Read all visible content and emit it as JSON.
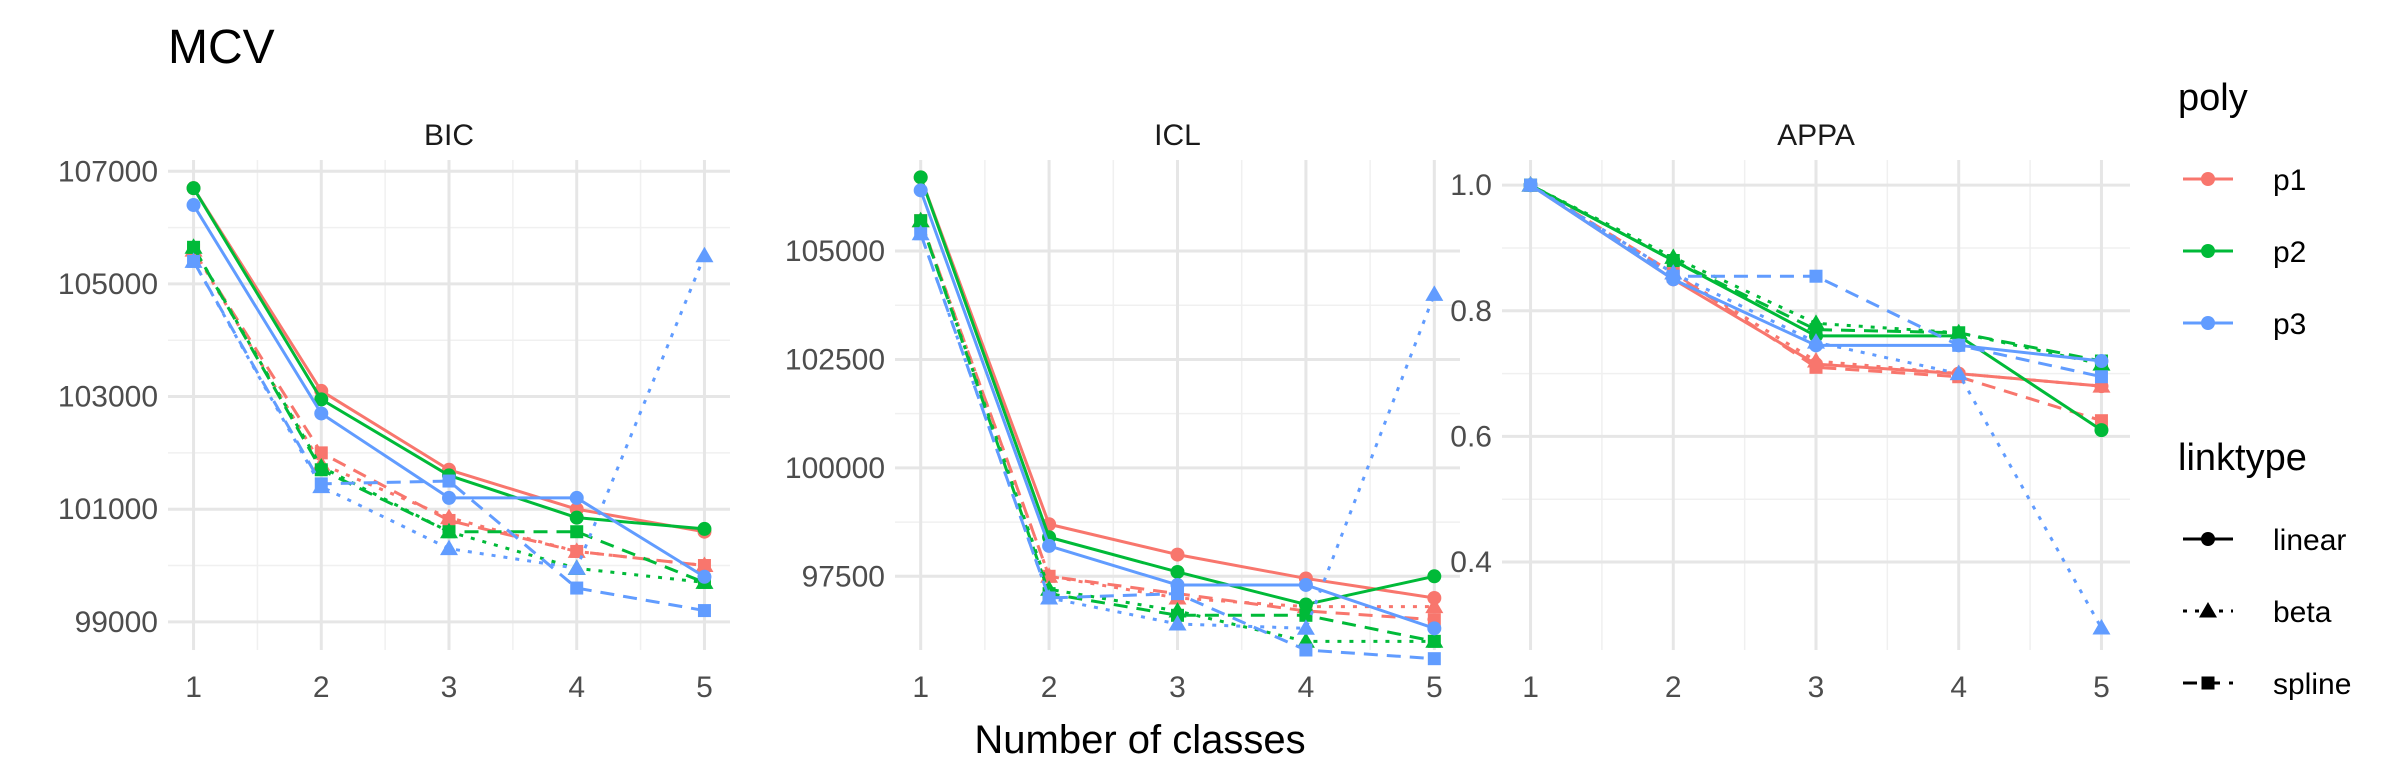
{
  "chart_data": {
    "type": "line",
    "title": "MCV",
    "xlabel": "Number of classes",
    "ylabel": "",
    "x": [
      1,
      2,
      3,
      4,
      5
    ],
    "grid": true,
    "legend_placement": "right",
    "legends": [
      {
        "title": "poly",
        "kind": "color",
        "entries": [
          {
            "label": "p1",
            "color": "#F8766D"
          },
          {
            "label": "p2",
            "color": "#00BA38"
          },
          {
            "label": "p3",
            "color": "#619CFF"
          }
        ]
      },
      {
        "title": "linktype",
        "kind": "linetype",
        "entries": [
          {
            "label": "linear",
            "dash": "solid",
            "marker": "circle"
          },
          {
            "label": "beta",
            "dash": "dotted",
            "marker": "triangle"
          },
          {
            "label": "spline",
            "dash": "dashed",
            "marker": "square"
          }
        ]
      }
    ],
    "panels": [
      {
        "name": "BIC",
        "ylim": [
          98500,
          107200
        ],
        "yticks": [
          99000,
          101000,
          103000,
          105000,
          107000
        ],
        "ytick_labels": [
          "99000",
          "101000",
          "103000",
          "105000",
          "107000"
        ],
        "series": [
          {
            "poly": "p1",
            "linktype": "linear",
            "values": [
              106700,
              103100,
              101700,
              101000,
              100600
            ]
          },
          {
            "poly": "p1",
            "linktype": "beta",
            "values": [
              105600,
              101800,
              100850,
              100250,
              100000
            ]
          },
          {
            "poly": "p1",
            "linktype": "spline",
            "values": [
              105600,
              102000,
              100800,
              100250,
              100000
            ]
          },
          {
            "poly": "p2",
            "linktype": "linear",
            "values": [
              106700,
              102950,
              101600,
              100850,
              100650
            ]
          },
          {
            "poly": "p2",
            "linktype": "beta",
            "values": [
              105650,
              101750,
              100600,
              99950,
              99700
            ]
          },
          {
            "poly": "p2",
            "linktype": "spline",
            "values": [
              105650,
              101700,
              100600,
              100600,
              99700
            ]
          },
          {
            "poly": "p3",
            "linktype": "linear",
            "values": [
              106400,
              102700,
              101200,
              101200,
              99800
            ]
          },
          {
            "poly": "p3",
            "linktype": "beta",
            "values": [
              105400,
              101400,
              100300,
              99950,
              105500
            ]
          },
          {
            "poly": "p3",
            "linktype": "spline",
            "values": [
              105400,
              101450,
              101500,
              99600,
              99200
            ]
          }
        ]
      },
      {
        "name": "ICL",
        "ylim": [
          95800,
          107100
        ],
        "yticks": [
          97500,
          100000,
          102500,
          105000
        ],
        "ytick_labels": [
          "97500",
          "100000",
          "102500",
          "105000"
        ],
        "series": [
          {
            "poly": "p1",
            "linktype": "linear",
            "values": [
              106700,
              98700,
              98000,
              97450,
              97000
            ]
          },
          {
            "poly": "p1",
            "linktype": "beta",
            "values": [
              105700,
              97500,
              97000,
              96800,
              96800
            ]
          },
          {
            "poly": "p1",
            "linktype": "spline",
            "values": [
              105700,
              97500,
              97100,
              96700,
              96500
            ]
          },
          {
            "poly": "p2",
            "linktype": "linear",
            "values": [
              106700,
              98400,
              97600,
              96850,
              97500
            ]
          },
          {
            "poly": "p2",
            "linktype": "beta",
            "values": [
              105700,
              97200,
              96700,
              96000,
              96000
            ]
          },
          {
            "poly": "p2",
            "linktype": "spline",
            "values": [
              105700,
              97100,
              96600,
              96600,
              96000
            ]
          },
          {
            "poly": "p3",
            "linktype": "linear",
            "values": [
              106400,
              98200,
              97300,
              97300,
              96300
            ]
          },
          {
            "poly": "p3",
            "linktype": "beta",
            "values": [
              105400,
              97000,
              96400,
              96300,
              104000
            ]
          },
          {
            "poly": "p3",
            "linktype": "spline",
            "values": [
              105400,
              97000,
              97100,
              95800,
              95600
            ]
          }
        ]
      },
      {
        "name": "APPA",
        "ylim": [
          0.26,
          1.04
        ],
        "yticks": [
          0.4,
          0.6,
          0.8,
          1.0
        ],
        "ytick_labels": [
          "0.4",
          "0.6",
          "0.8",
          "1.0"
        ],
        "series": [
          {
            "poly": "p1",
            "linktype": "linear",
            "values": [
              1.0,
              0.85,
              0.715,
              0.7,
              0.68
            ]
          },
          {
            "poly": "p1",
            "linktype": "beta",
            "values": [
              1.0,
              0.86,
              0.72,
              0.7,
              0.68
            ]
          },
          {
            "poly": "p1",
            "linktype": "spline",
            "values": [
              1.0,
              0.86,
              0.71,
              0.695,
              0.625
            ]
          },
          {
            "poly": "p2",
            "linktype": "linear",
            "values": [
              1.0,
              0.88,
              0.76,
              0.76,
              0.61
            ]
          },
          {
            "poly": "p2",
            "linktype": "beta",
            "values": [
              1.0,
              0.885,
              0.78,
              0.765,
              0.715
            ]
          },
          {
            "poly": "p2",
            "linktype": "spline",
            "values": [
              1.0,
              0.88,
              0.77,
              0.765,
              0.72
            ]
          },
          {
            "poly": "p3",
            "linktype": "linear",
            "values": [
              1.0,
              0.85,
              0.745,
              0.745,
              0.72
            ]
          },
          {
            "poly": "p3",
            "linktype": "beta",
            "values": [
              1.0,
              0.86,
              0.75,
              0.7,
              0.295
            ]
          },
          {
            "poly": "p3",
            "linktype": "spline",
            "values": [
              1.0,
              0.855,
              0.855,
              0.745,
              0.695
            ]
          }
        ]
      }
    ]
  }
}
